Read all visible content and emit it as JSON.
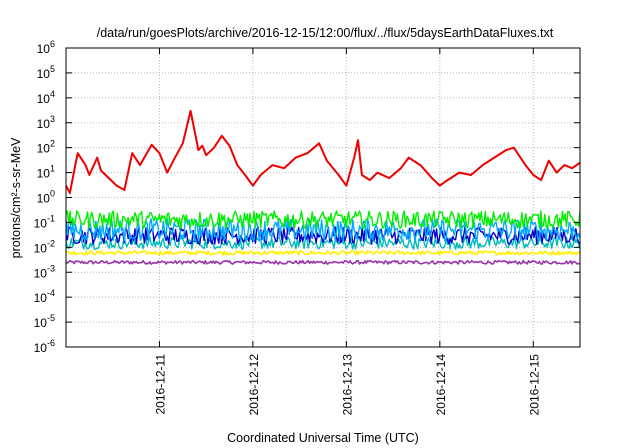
{
  "chart_data": {
    "type": "line",
    "title": "/data/run/goesPlots/archive/2016-12-15/12:00/flux/../flux/5daysEarthDataFluxes.txt",
    "xlabel": "Coordinated Universal Time (UTC)",
    "ylabel": "protons/cm²-s-sr-MeV",
    "y_scale": "log",
    "ylim": [
      1e-06,
      1000000.0
    ],
    "xlim": [
      "2016-12-10T00:00",
      "2016-12-15T12:00"
    ],
    "grid": true,
    "y_ticks": [
      {
        "base": "10",
        "exp": "-6"
      },
      {
        "base": "10",
        "exp": "-5"
      },
      {
        "base": "10",
        "exp": "-4"
      },
      {
        "base": "10",
        "exp": "-3"
      },
      {
        "base": "10",
        "exp": "-2"
      },
      {
        "base": "10",
        "exp": "-1"
      },
      {
        "base": "10",
        "exp": "0"
      },
      {
        "base": "10",
        "exp": "1"
      },
      {
        "base": "10",
        "exp": "2"
      },
      {
        "base": "10",
        "exp": "3"
      },
      {
        "base": "10",
        "exp": "4"
      },
      {
        "base": "10",
        "exp": "5"
      },
      {
        "base": "10",
        "exp": "6"
      }
    ],
    "x_ticks": [
      "2016-12-11",
      "2016-12-12",
      "2016-12-13",
      "2016-12-14",
      "2016-12-15"
    ],
    "series": [
      {
        "color": "#ee0000",
        "x": [
          "2016-12-10T00:00",
          "2016-12-10T01:00",
          "2016-12-10T02:00",
          "2016-12-10T03:00",
          "2016-12-10T05:00",
          "2016-12-10T06:00",
          "2016-12-10T08:00",
          "2016-12-10T09:00",
          "2016-12-10T11:00",
          "2016-12-10T13:00",
          "2016-12-10T15:00",
          "2016-12-10T17:00",
          "2016-12-10T19:00",
          "2016-12-10T22:00",
          "2016-12-11T00:00",
          "2016-12-11T02:00",
          "2016-12-11T04:00",
          "2016-12-11T06:00",
          "2016-12-11T08:00",
          "2016-12-11T10:00",
          "2016-12-11T11:00",
          "2016-12-11T12:00",
          "2016-12-11T14:00",
          "2016-12-11T16:00",
          "2016-12-11T18:00",
          "2016-12-11T20:00",
          "2016-12-11T22:00",
          "2016-12-12T00:00",
          "2016-12-12T02:00",
          "2016-12-12T05:00",
          "2016-12-12T08:00",
          "2016-12-12T11:00",
          "2016-12-12T14:00",
          "2016-12-12T17:00",
          "2016-12-12T19:00",
          "2016-12-12T22:00",
          "2016-12-13T00:00",
          "2016-12-13T02:00",
          "2016-12-13T03:00",
          "2016-12-13T04:00",
          "2016-12-13T06:00",
          "2016-12-13T08:00",
          "2016-12-13T11:00",
          "2016-12-13T14:00",
          "2016-12-13T16:00",
          "2016-12-13T19:00",
          "2016-12-13T22:00",
          "2016-12-14T00:00",
          "2016-12-14T02:00",
          "2016-12-14T05:00",
          "2016-12-14T08:00",
          "2016-12-14T11:00",
          "2016-12-14T14:00",
          "2016-12-14T17:00",
          "2016-12-14T19:00",
          "2016-12-14T22:00",
          "2016-12-15T00:00",
          "2016-12-15T02:00",
          "2016-12-15T04:00",
          "2016-12-15T06:00",
          "2016-12-15T08:00",
          "2016-12-15T10:00",
          "2016-12-15T12:00"
        ],
        "values": [
          3,
          1.5,
          10,
          60,
          20,
          8,
          40,
          12,
          6,
          3,
          2,
          60,
          20,
          130,
          60,
          10,
          40,
          150,
          3000,
          80,
          120,
          50,
          100,
          300,
          120,
          20,
          8,
          3,
          8,
          20,
          15,
          40,
          60,
          150,
          30,
          8,
          3,
          40,
          200,
          8,
          5,
          10,
          6,
          15,
          40,
          20,
          6,
          3,
          5,
          10,
          8,
          20,
          40,
          80,
          100,
          20,
          8,
          5,
          30,
          10,
          20,
          15,
          25
        ]
      },
      {
        "color": "#00ee00",
        "x": [
          "2016-12-10T00:00",
          "2016-12-15T12:00"
        ],
        "values": [
          0.13,
          0.13
        ]
      },
      {
        "color": "#00aaff",
        "x": [
          "2016-12-10T00:00",
          "2016-12-15T12:00"
        ],
        "values": [
          0.05,
          0.05
        ]
      },
      {
        "color": "#0000cc",
        "x": [
          "2016-12-10T00:00",
          "2016-12-15T12:00"
        ],
        "values": [
          0.03,
          0.03
        ]
      },
      {
        "color": "#00bbbb",
        "x": [
          "2016-12-10T00:00",
          "2016-12-15T12:00"
        ],
        "values": [
          0.015,
          0.015
        ]
      },
      {
        "color": "#ffee00",
        "x": [
          "2016-12-10T00:00",
          "2016-12-15T12:00"
        ],
        "values": [
          0.006,
          0.006
        ]
      },
      {
        "color": "#9933aa",
        "x": [
          "2016-12-10T00:00",
          "2016-12-15T12:00"
        ],
        "values": [
          0.0025,
          0.0025
        ]
      }
    ]
  }
}
